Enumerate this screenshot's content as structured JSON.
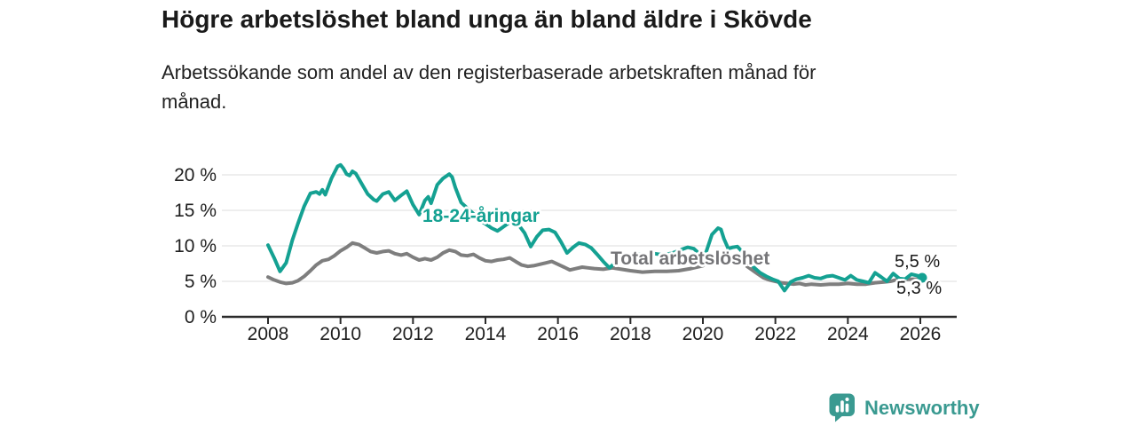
{
  "header": {
    "title": "Högre arbetslöshet bland unga än bland äldre i Skövde",
    "subtitle": "Arbetssökande som andel av den registerbaserade arbetskraften månad för månad."
  },
  "colors": {
    "young_series": "#14a192",
    "total_series": "#7e7e7e",
    "total_label_text": "#757578",
    "axis_text": "#1f1f1f",
    "gridline": "#dcdcdc",
    "axis_line": "#2b2b2b",
    "brand_teal": "#3a9a91"
  },
  "chart_data": {
    "type": "line",
    "title": "Högre arbetslöshet bland unga än bland äldre i Skövde",
    "subtitle": "Arbetssökande som andel av den registerbaserade arbetskraften månad för månad.",
    "unit": "%",
    "grid": "horizontal",
    "x_axis": {
      "ticks": [
        2008,
        2010,
        2012,
        2014,
        2016,
        2018,
        2020,
        2022,
        2024,
        2026
      ],
      "range": [
        2006.75,
        2027
      ]
    },
    "y_axis": {
      "ticks": [
        {
          "value": 0,
          "label": "0 %"
        },
        {
          "value": 5,
          "label": "5 %"
        },
        {
          "value": 10,
          "label": "10 %"
        },
        {
          "value": 15,
          "label": "15 %"
        },
        {
          "value": 20,
          "label": "20 %"
        }
      ],
      "range": [
        0,
        23.4
      ]
    },
    "series": [
      {
        "name": "Total arbetslöshet",
        "color": "#7e7e7e",
        "end_dot": false,
        "end_value_label": "5,3 %",
        "points": [
          [
            2008.0,
            5.6
          ],
          [
            2008.17,
            5.2
          ],
          [
            2008.33,
            4.9
          ],
          [
            2008.5,
            4.7
          ],
          [
            2008.67,
            4.8
          ],
          [
            2008.83,
            5.1
          ],
          [
            2009.0,
            5.7
          ],
          [
            2009.17,
            6.5
          ],
          [
            2009.33,
            7.3
          ],
          [
            2009.5,
            7.9
          ],
          [
            2009.67,
            8.1
          ],
          [
            2009.83,
            8.6
          ],
          [
            2010.0,
            9.3
          ],
          [
            2010.17,
            9.8
          ],
          [
            2010.33,
            10.4
          ],
          [
            2010.5,
            10.2
          ],
          [
            2010.67,
            9.7
          ],
          [
            2010.83,
            9.2
          ],
          [
            2011.0,
            9.0
          ],
          [
            2011.17,
            9.2
          ],
          [
            2011.33,
            9.3
          ],
          [
            2011.5,
            8.9
          ],
          [
            2011.67,
            8.7
          ],
          [
            2011.83,
            8.9
          ],
          [
            2012.0,
            8.4
          ],
          [
            2012.17,
            8.0
          ],
          [
            2012.33,
            8.2
          ],
          [
            2012.5,
            8.0
          ],
          [
            2012.67,
            8.4
          ],
          [
            2012.83,
            9.0
          ],
          [
            2013.0,
            9.4
          ],
          [
            2013.17,
            9.2
          ],
          [
            2013.33,
            8.7
          ],
          [
            2013.5,
            8.6
          ],
          [
            2013.67,
            8.8
          ],
          [
            2013.83,
            8.3
          ],
          [
            2014.0,
            7.9
          ],
          [
            2014.17,
            7.8
          ],
          [
            2014.33,
            8.0
          ],
          [
            2014.5,
            8.1
          ],
          [
            2014.67,
            8.3
          ],
          [
            2014.83,
            7.8
          ],
          [
            2015.0,
            7.3
          ],
          [
            2015.17,
            7.1
          ],
          [
            2015.33,
            7.2
          ],
          [
            2015.5,
            7.4
          ],
          [
            2015.67,
            7.6
          ],
          [
            2015.83,
            7.8
          ],
          [
            2016.0,
            7.4
          ],
          [
            2016.17,
            7.0
          ],
          [
            2016.33,
            6.6
          ],
          [
            2016.5,
            6.8
          ],
          [
            2016.67,
            7.0
          ],
          [
            2016.83,
            6.9
          ],
          [
            2017.0,
            6.8
          ],
          [
            2017.25,
            6.7
          ],
          [
            2017.5,
            6.9
          ],
          [
            2017.75,
            6.7
          ],
          [
            2018.0,
            6.5
          ],
          [
            2018.33,
            6.3
          ],
          [
            2018.67,
            6.4
          ],
          [
            2019.0,
            6.4
          ],
          [
            2019.33,
            6.5
          ],
          [
            2019.67,
            6.8
          ],
          [
            2020.0,
            7.2
          ],
          [
            2020.25,
            8.3
          ],
          [
            2020.5,
            8.8
          ],
          [
            2020.75,
            8.6
          ],
          [
            2021.0,
            8.0
          ],
          [
            2021.25,
            7.0
          ],
          [
            2021.5,
            6.1
          ],
          [
            2021.67,
            5.5
          ],
          [
            2021.83,
            5.2
          ],
          [
            2022.0,
            5.0
          ],
          [
            2022.17,
            4.8
          ],
          [
            2022.33,
            4.7
          ],
          [
            2022.5,
            4.6
          ],
          [
            2022.67,
            4.7
          ],
          [
            2022.83,
            4.5
          ],
          [
            2023.0,
            4.6
          ],
          [
            2023.25,
            4.5
          ],
          [
            2023.5,
            4.6
          ],
          [
            2023.75,
            4.6
          ],
          [
            2024.0,
            4.7
          ],
          [
            2024.25,
            4.6
          ],
          [
            2024.5,
            4.6
          ],
          [
            2024.75,
            4.8
          ],
          [
            2025.0,
            4.9
          ],
          [
            2025.17,
            5.0
          ],
          [
            2025.33,
            5.2
          ],
          [
            2025.5,
            5.2
          ],
          [
            2025.67,
            5.3
          ],
          [
            2025.83,
            5.3
          ],
          [
            2026.0,
            5.3
          ]
        ]
      },
      {
        "name": "18-24-åringar",
        "color": "#14a192",
        "end_dot": true,
        "end_value_label": "5,5 %",
        "points": [
          [
            2008.0,
            10.1
          ],
          [
            2008.17,
            8.3
          ],
          [
            2008.33,
            6.4
          ],
          [
            2008.5,
            7.6
          ],
          [
            2008.67,
            10.8
          ],
          [
            2008.83,
            13.2
          ],
          [
            2009.0,
            15.6
          ],
          [
            2009.17,
            17.4
          ],
          [
            2009.33,
            17.6
          ],
          [
            2009.42,
            17.3
          ],
          [
            2009.5,
            17.9
          ],
          [
            2009.58,
            17.2
          ],
          [
            2009.75,
            19.5
          ],
          [
            2009.92,
            21.2
          ],
          [
            2010.0,
            21.4
          ],
          [
            2010.08,
            20.9
          ],
          [
            2010.17,
            20.1
          ],
          [
            2010.25,
            19.9
          ],
          [
            2010.33,
            20.5
          ],
          [
            2010.42,
            20.2
          ],
          [
            2010.58,
            18.8
          ],
          [
            2010.75,
            17.3
          ],
          [
            2010.92,
            16.5
          ],
          [
            2011.0,
            16.3
          ],
          [
            2011.17,
            17.3
          ],
          [
            2011.33,
            17.6
          ],
          [
            2011.5,
            16.4
          ],
          [
            2011.67,
            17.1
          ],
          [
            2011.83,
            17.7
          ],
          [
            2012.0,
            15.8
          ],
          [
            2012.17,
            14.4
          ],
          [
            2012.33,
            16.4
          ],
          [
            2012.42,
            16.9
          ],
          [
            2012.5,
            16.0
          ],
          [
            2012.67,
            18.6
          ],
          [
            2012.83,
            19.5
          ],
          [
            2013.0,
            20.1
          ],
          [
            2013.08,
            19.7
          ],
          [
            2013.17,
            18.2
          ],
          [
            2013.33,
            16.1
          ],
          [
            2013.5,
            15.3
          ],
          [
            2013.67,
            14.5
          ],
          [
            2013.83,
            13.6
          ],
          [
            2014.0,
            13.1
          ],
          [
            2014.17,
            12.5
          ],
          [
            2014.33,
            12.1
          ],
          [
            2014.42,
            12.4
          ],
          [
            2014.58,
            13.0
          ],
          [
            2014.75,
            13.6
          ],
          [
            2014.92,
            12.9
          ],
          [
            2015.08,
            11.8
          ],
          [
            2015.25,
            9.9
          ],
          [
            2015.42,
            11.3
          ],
          [
            2015.58,
            12.2
          ],
          [
            2015.75,
            12.3
          ],
          [
            2015.92,
            11.9
          ],
          [
            2016.08,
            10.6
          ],
          [
            2016.25,
            9.0
          ],
          [
            2016.42,
            9.8
          ],
          [
            2016.58,
            10.4
          ],
          [
            2016.75,
            10.2
          ],
          [
            2016.92,
            9.7
          ],
          [
            2017.08,
            8.8
          ],
          [
            2017.25,
            7.8
          ],
          [
            2017.42,
            6.9
          ],
          [
            2017.58,
            7.6
          ],
          [
            2017.75,
            8.2
          ],
          [
            2017.92,
            8.6
          ],
          [
            2018.17,
            8.9
          ],
          [
            2018.42,
            8.6
          ],
          [
            2018.67,
            8.9
          ],
          [
            2018.92,
            8.7
          ],
          [
            2019.17,
            9.0
          ],
          [
            2019.42,
            9.5
          ],
          [
            2019.58,
            9.8
          ],
          [
            2019.75,
            9.6
          ],
          [
            2019.92,
            8.8
          ],
          [
            2020.08,
            9.0
          ],
          [
            2020.25,
            11.6
          ],
          [
            2020.42,
            12.5
          ],
          [
            2020.5,
            12.3
          ],
          [
            2020.58,
            11.0
          ],
          [
            2020.7,
            9.6
          ],
          [
            2020.83,
            9.8
          ],
          [
            2020.95,
            9.9
          ],
          [
            2021.08,
            9.2
          ],
          [
            2021.25,
            8.0
          ],
          [
            2021.42,
            6.9
          ],
          [
            2021.58,
            6.2
          ],
          [
            2021.75,
            5.7
          ],
          [
            2021.92,
            5.3
          ],
          [
            2022.08,
            5.0
          ],
          [
            2022.25,
            3.7
          ],
          [
            2022.42,
            4.9
          ],
          [
            2022.58,
            5.3
          ],
          [
            2022.75,
            5.5
          ],
          [
            2022.92,
            5.8
          ],
          [
            2023.08,
            5.5
          ],
          [
            2023.25,
            5.4
          ],
          [
            2023.42,
            5.7
          ],
          [
            2023.58,
            5.8
          ],
          [
            2023.75,
            5.5
          ],
          [
            2023.92,
            5.2
          ],
          [
            2024.08,
            5.8
          ],
          [
            2024.25,
            5.2
          ],
          [
            2024.42,
            5.0
          ],
          [
            2024.58,
            4.8
          ],
          [
            2024.75,
            6.2
          ],
          [
            2024.92,
            5.6
          ],
          [
            2025.08,
            5.0
          ],
          [
            2025.25,
            6.1
          ],
          [
            2025.42,
            5.4
          ],
          [
            2025.58,
            5.3
          ],
          [
            2025.75,
            6.0
          ],
          [
            2025.92,
            5.8
          ],
          [
            2026.05,
            5.5
          ]
        ]
      }
    ],
    "annotations": {
      "young_series_label": "18-24-åringar",
      "total_series_label": "Total arbetslöshet",
      "end_value_top": "5,5 %",
      "end_value_bottom": "5,3 %"
    },
    "legend_position": "inline-labels"
  },
  "footer": {
    "brand": "Newsworthy"
  }
}
